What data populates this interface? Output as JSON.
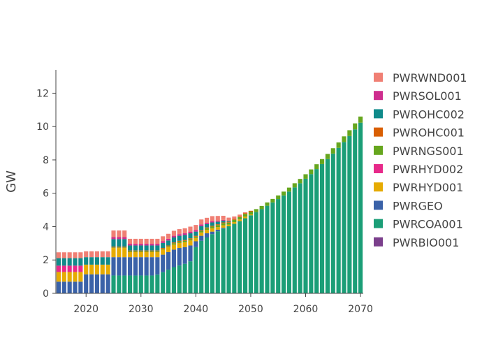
{
  "chart_data": {
    "type": "bar",
    "stacked": true,
    "ylabel": "GW",
    "xlim": [
      2014.5,
      2070.5
    ],
    "ylim": [
      0,
      13.4
    ],
    "x_ticks": [
      2020,
      2030,
      2040,
      2050,
      2060,
      2070
    ],
    "y_ticks": [
      0,
      2,
      4,
      6,
      8,
      10,
      12
    ],
    "grid": false,
    "legend_position": "right",
    "x": [
      2015,
      2016,
      2017,
      2018,
      2019,
      2020,
      2021,
      2022,
      2023,
      2024,
      2025,
      2026,
      2027,
      2028,
      2029,
      2030,
      2031,
      2032,
      2033,
      2034,
      2035,
      2036,
      2037,
      2038,
      2039,
      2040,
      2041,
      2042,
      2043,
      2044,
      2045,
      2046,
      2047,
      2048,
      2049,
      2050,
      2051,
      2052,
      2053,
      2054,
      2055,
      2056,
      2057,
      2058,
      2059,
      2060,
      2061,
      2062,
      2063,
      2064,
      2065,
      2066,
      2067,
      2068,
      2069,
      2070
    ],
    "series": [
      {
        "name": "PWRBIO001",
        "color": "#7b3f8c",
        "values": [
          0.02,
          0.02,
          0.02,
          0.02,
          0.02,
          0.02,
          0.02,
          0.02,
          0.02,
          0.02,
          0.02,
          0.02,
          0.02,
          0.02,
          0.02,
          0.02,
          0.02,
          0.02,
          0.02,
          0.02,
          0.02,
          0.02,
          0.02,
          0.02,
          0.02,
          0.02,
          0,
          0,
          0,
          0,
          0,
          0,
          0,
          0,
          0,
          0,
          0,
          0,
          0,
          0,
          0,
          0,
          0,
          0,
          0,
          0,
          0,
          0,
          0,
          0,
          0,
          0,
          0,
          0,
          0,
          0
        ]
      },
      {
        "name": "PWRCOA001",
        "color": "#1b9e77",
        "values": [
          0,
          0,
          0,
          0,
          0,
          0,
          0,
          0,
          0,
          0,
          1.05,
          1.05,
          1.05,
          1.05,
          1.05,
          1.05,
          1.05,
          1.05,
          1.1,
          1.25,
          1.4,
          1.55,
          1.65,
          1.75,
          1.9,
          2.75,
          3.15,
          3.35,
          3.55,
          3.72,
          3.88,
          4.02,
          4.17,
          4.33,
          4.5,
          4.68,
          4.87,
          5.05,
          5.25,
          5.45,
          5.65,
          5.87,
          6.1,
          6.35,
          6.6,
          6.87,
          7.15,
          7.45,
          7.75,
          8.05,
          8.38,
          8.72,
          9.07,
          9.43,
          9.83,
          10.23
        ]
      },
      {
        "name": "PWRGEO",
        "color": "#3a62a8",
        "values": [
          0.68,
          0.68,
          0.68,
          0.68,
          0.68,
          1.12,
          1.12,
          1.12,
          1.12,
          1.12,
          1.1,
          1.1,
          1.1,
          1.1,
          1.1,
          1.1,
          1.1,
          1.1,
          1.05,
          1.05,
          1.05,
          1.05,
          1.05,
          1.0,
          0.95,
          0.35,
          0.3,
          0.25,
          0.15,
          0.1,
          0.05,
          0,
          0,
          0,
          0,
          0,
          0,
          0,
          0,
          0,
          0,
          0,
          0,
          0,
          0,
          0,
          0,
          0,
          0,
          0,
          0,
          0,
          0,
          0,
          0,
          0
        ]
      },
      {
        "name": "PWRHYD001",
        "color": "#e6ab02",
        "values": [
          0.58,
          0.58,
          0.58,
          0.58,
          0.58,
          0.58,
          0.58,
          0.58,
          0.58,
          0.58,
          0.55,
          0.55,
          0.55,
          0.3,
          0.3,
          0.3,
          0.3,
          0.3,
          0.3,
          0.3,
          0.3,
          0.3,
          0.3,
          0.3,
          0.3,
          0.2,
          0.2,
          0.2,
          0.2,
          0.15,
          0.15,
          0.1,
          0.1,
          0.1,
          0.1,
          0.05,
          0,
          0,
          0,
          0,
          0,
          0,
          0,
          0,
          0,
          0,
          0,
          0,
          0,
          0,
          0,
          0,
          0,
          0,
          0,
          0
        ]
      },
      {
        "name": "PWRHYD002",
        "color": "#e7298a",
        "values": [
          0.38,
          0.38,
          0.38,
          0.38,
          0.38,
          0,
          0,
          0,
          0,
          0,
          0,
          0,
          0,
          0,
          0,
          0,
          0,
          0,
          0,
          0,
          0,
          0,
          0,
          0,
          0,
          0,
          0,
          0,
          0,
          0,
          0,
          0,
          0,
          0,
          0,
          0,
          0,
          0,
          0,
          0,
          0,
          0,
          0,
          0,
          0,
          0,
          0,
          0,
          0,
          0,
          0,
          0,
          0,
          0,
          0,
          0
        ]
      },
      {
        "name": "PWRNGS001",
        "color": "#66a61e",
        "values": [
          0,
          0,
          0,
          0,
          0,
          0,
          0,
          0,
          0,
          0,
          0.03,
          0.03,
          0.03,
          0.05,
          0.05,
          0.05,
          0.05,
          0.05,
          0.05,
          0.05,
          0.05,
          0.08,
          0.08,
          0.08,
          0.08,
          0.08,
          0.08,
          0.1,
          0.1,
          0.12,
          0.12,
          0.12,
          0.14,
          0.14,
          0.16,
          0.17,
          0.18,
          0.19,
          0.2,
          0.21,
          0.22,
          0.23,
          0.24,
          0.25,
          0.26,
          0.27,
          0.28,
          0.29,
          0.3,
          0.31,
          0.32,
          0.33,
          0.34,
          0.35,
          0.36,
          0.37
        ]
      },
      {
        "name": "PWROHC001",
        "color": "#d95f02",
        "values": [
          0,
          0,
          0,
          0,
          0,
          0,
          0,
          0,
          0,
          0,
          0.05,
          0.05,
          0.05,
          0.05,
          0.05,
          0.05,
          0.05,
          0.05,
          0.05,
          0.05,
          0.05,
          0.05,
          0.05,
          0.05,
          0.05,
          0.05,
          0.05,
          0.05,
          0.05,
          0.05,
          0.05,
          0.05,
          0.05,
          0.05,
          0.05,
          0.05,
          0,
          0,
          0,
          0,
          0,
          0,
          0,
          0,
          0,
          0,
          0,
          0,
          0,
          0,
          0,
          0,
          0,
          0,
          0,
          0
        ]
      },
      {
        "name": "PWROHC002",
        "color": "#0f8a8a",
        "values": [
          0.45,
          0.45,
          0.45,
          0.45,
          0.45,
          0.45,
          0.45,
          0.45,
          0.45,
          0.45,
          0.45,
          0.45,
          0.45,
          0.3,
          0.3,
          0.3,
          0.3,
          0.3,
          0.3,
          0.3,
          0.3,
          0.3,
          0.3,
          0.3,
          0.3,
          0.25,
          0.25,
          0.2,
          0.2,
          0.15,
          0.1,
          0.05,
          0,
          0,
          0,
          0,
          0,
          0,
          0,
          0,
          0,
          0,
          0,
          0,
          0,
          0,
          0,
          0,
          0,
          0,
          0,
          0,
          0,
          0,
          0,
          0
        ]
      },
      {
        "name": "PWRSOL001",
        "color": "#ce2d8e",
        "values": [
          0,
          0,
          0,
          0,
          0,
          0,
          0,
          0,
          0,
          0,
          0.12,
          0.12,
          0.12,
          0.1,
          0.1,
          0.1,
          0.1,
          0.1,
          0.1,
          0.1,
          0.1,
          0.1,
          0.1,
          0.1,
          0.1,
          0.1,
          0.1,
          0.08,
          0.08,
          0.05,
          0.05,
          0,
          0,
          0,
          0,
          0,
          0,
          0,
          0,
          0,
          0,
          0,
          0,
          0,
          0,
          0,
          0,
          0,
          0,
          0,
          0,
          0,
          0,
          0,
          0,
          0
        ]
      },
      {
        "name": "PWRWND001",
        "color": "#f07f74",
        "values": [
          0.35,
          0.35,
          0.35,
          0.35,
          0.35,
          0.35,
          0.35,
          0.35,
          0.35,
          0.35,
          0.4,
          0.4,
          0.4,
          0.3,
          0.3,
          0.3,
          0.3,
          0.3,
          0.3,
          0.3,
          0.3,
          0.3,
          0.3,
          0.3,
          0.3,
          0.3,
          0.3,
          0.3,
          0.3,
          0.3,
          0.25,
          0.2,
          0.15,
          0.1,
          0.05,
          0,
          0,
          0,
          0,
          0,
          0,
          0,
          0,
          0,
          0,
          0,
          0,
          0,
          0,
          0,
          0,
          0,
          0,
          0,
          0,
          0
        ]
      }
    ]
  }
}
